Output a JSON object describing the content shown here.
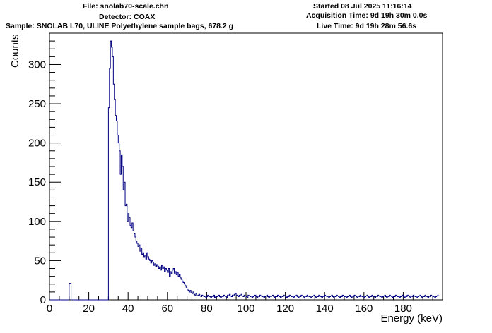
{
  "header": {
    "file": "File: snolab70-scale.chn",
    "detector": "Detector: COAX",
    "sample": "Sample: SNOLAB L70, ULINE Polyethylene sample bags, 678.2 g",
    "started": "Started 08 Jul 2025 11:16:14",
    "acquisition_time": "Acquisition Time: 9d 19h 30m 0.0s",
    "live_time": "Live Time: 9d 19h 28m 56.6s"
  },
  "chart_data": {
    "type": "histogram",
    "xlabel": "Energy (keV)",
    "ylabel": "Counts",
    "xlim": [
      0,
      200
    ],
    "ylim": [
      0,
      340
    ],
    "xticks": [
      0,
      20,
      40,
      60,
      80,
      100,
      120,
      140,
      160,
      180
    ],
    "yticks": [
      0,
      50,
      100,
      150,
      200,
      250,
      300
    ],
    "line_color": "#000080",
    "bin_width_keV": 0.5,
    "grid": false,
    "legend": "none",
    "series": [
      {
        "x_start": 0,
        "values": [
          0,
          0,
          0,
          0,
          0,
          0,
          0,
          0,
          0,
          0,
          0,
          0,
          0,
          0,
          0,
          0,
          0,
          0,
          0,
          0,
          21,
          21,
          0,
          0,
          0,
          0,
          0,
          0,
          0,
          0,
          0,
          0,
          0,
          0,
          0,
          0,
          0,
          0,
          0,
          0,
          0,
          0,
          0,
          0,
          0,
          0,
          0,
          0,
          0,
          0,
          0,
          0,
          0,
          0,
          0,
          0,
          0,
          0,
          0,
          0,
          245,
          295,
          330,
          322,
          310,
          275,
          255,
          235,
          228,
          210,
          200,
          190,
          160,
          185,
          170,
          140,
          150,
          120,
          122,
          100,
          110,
          105,
          95,
          92,
          98,
          88,
          85,
          80,
          75,
          72,
          68,
          70,
          62,
          66,
          58,
          60,
          55,
          57,
          52,
          60,
          55,
          52,
          50,
          47,
          50,
          48,
          44,
          46,
          42,
          45,
          43,
          40,
          42,
          38,
          44,
          40,
          42,
          36,
          40,
          38,
          35,
          40,
          30,
          36,
          33,
          38,
          40,
          34,
          36,
          32,
          35,
          30,
          32,
          28,
          26,
          24,
          22,
          20,
          18,
          16,
          14,
          12,
          10,
          12,
          9,
          8,
          10,
          7,
          6,
          8,
          5,
          6,
          7,
          5,
          4,
          6,
          5,
          4,
          5,
          3,
          4,
          6,
          5,
          4,
          3,
          5,
          4,
          6,
          3,
          5,
          4,
          5,
          6,
          4,
          3,
          5,
          4,
          6,
          5,
          4,
          3,
          6,
          5,
          7,
          5,
          4,
          6,
          5,
          7,
          8,
          6,
          5,
          4,
          6,
          5,
          7,
          5,
          4,
          6,
          5,
          4,
          3,
          6,
          5,
          4,
          5,
          3,
          4,
          5,
          6,
          4,
          3,
          5,
          4,
          6,
          5,
          4,
          5,
          3,
          4,
          5,
          6,
          4,
          3,
          5,
          4,
          5,
          6,
          4,
          3,
          5,
          4,
          6,
          5,
          4,
          3,
          5,
          4,
          6,
          5,
          4,
          3,
          5,
          4,
          6,
          5,
          4,
          5,
          3,
          4,
          5,
          6,
          4,
          3,
          5,
          4,
          6,
          5,
          4,
          3,
          5,
          4,
          6,
          5,
          4,
          5,
          3,
          4,
          5,
          6,
          4,
          3,
          5,
          4,
          6,
          5,
          4,
          3,
          5,
          4,
          6,
          5,
          4,
          5,
          3,
          4,
          5,
          6,
          4,
          3,
          5,
          4,
          6,
          5,
          4,
          3,
          5,
          4,
          6,
          5,
          4,
          5,
          3,
          4,
          5,
          6,
          4,
          3,
          5,
          4,
          6,
          5,
          4,
          3,
          5,
          4,
          6,
          5,
          4,
          5,
          3,
          4,
          5,
          6,
          4,
          3,
          5,
          4,
          6,
          5,
          4,
          3,
          5,
          4,
          6,
          5,
          4,
          5,
          3,
          4,
          5,
          6,
          4,
          3,
          5,
          4,
          6,
          5,
          4,
          3,
          5,
          4,
          6,
          5,
          4,
          5,
          3,
          4,
          5,
          6,
          4,
          3,
          5,
          4,
          6,
          5,
          4,
          3,
          5,
          4,
          6,
          5,
          4,
          5,
          3,
          4,
          5,
          6,
          4,
          3,
          5,
          4,
          6,
          5,
          4,
          3,
          5,
          4,
          6,
          5,
          4,
          5,
          3,
          4,
          5,
          6
        ]
      }
    ]
  }
}
